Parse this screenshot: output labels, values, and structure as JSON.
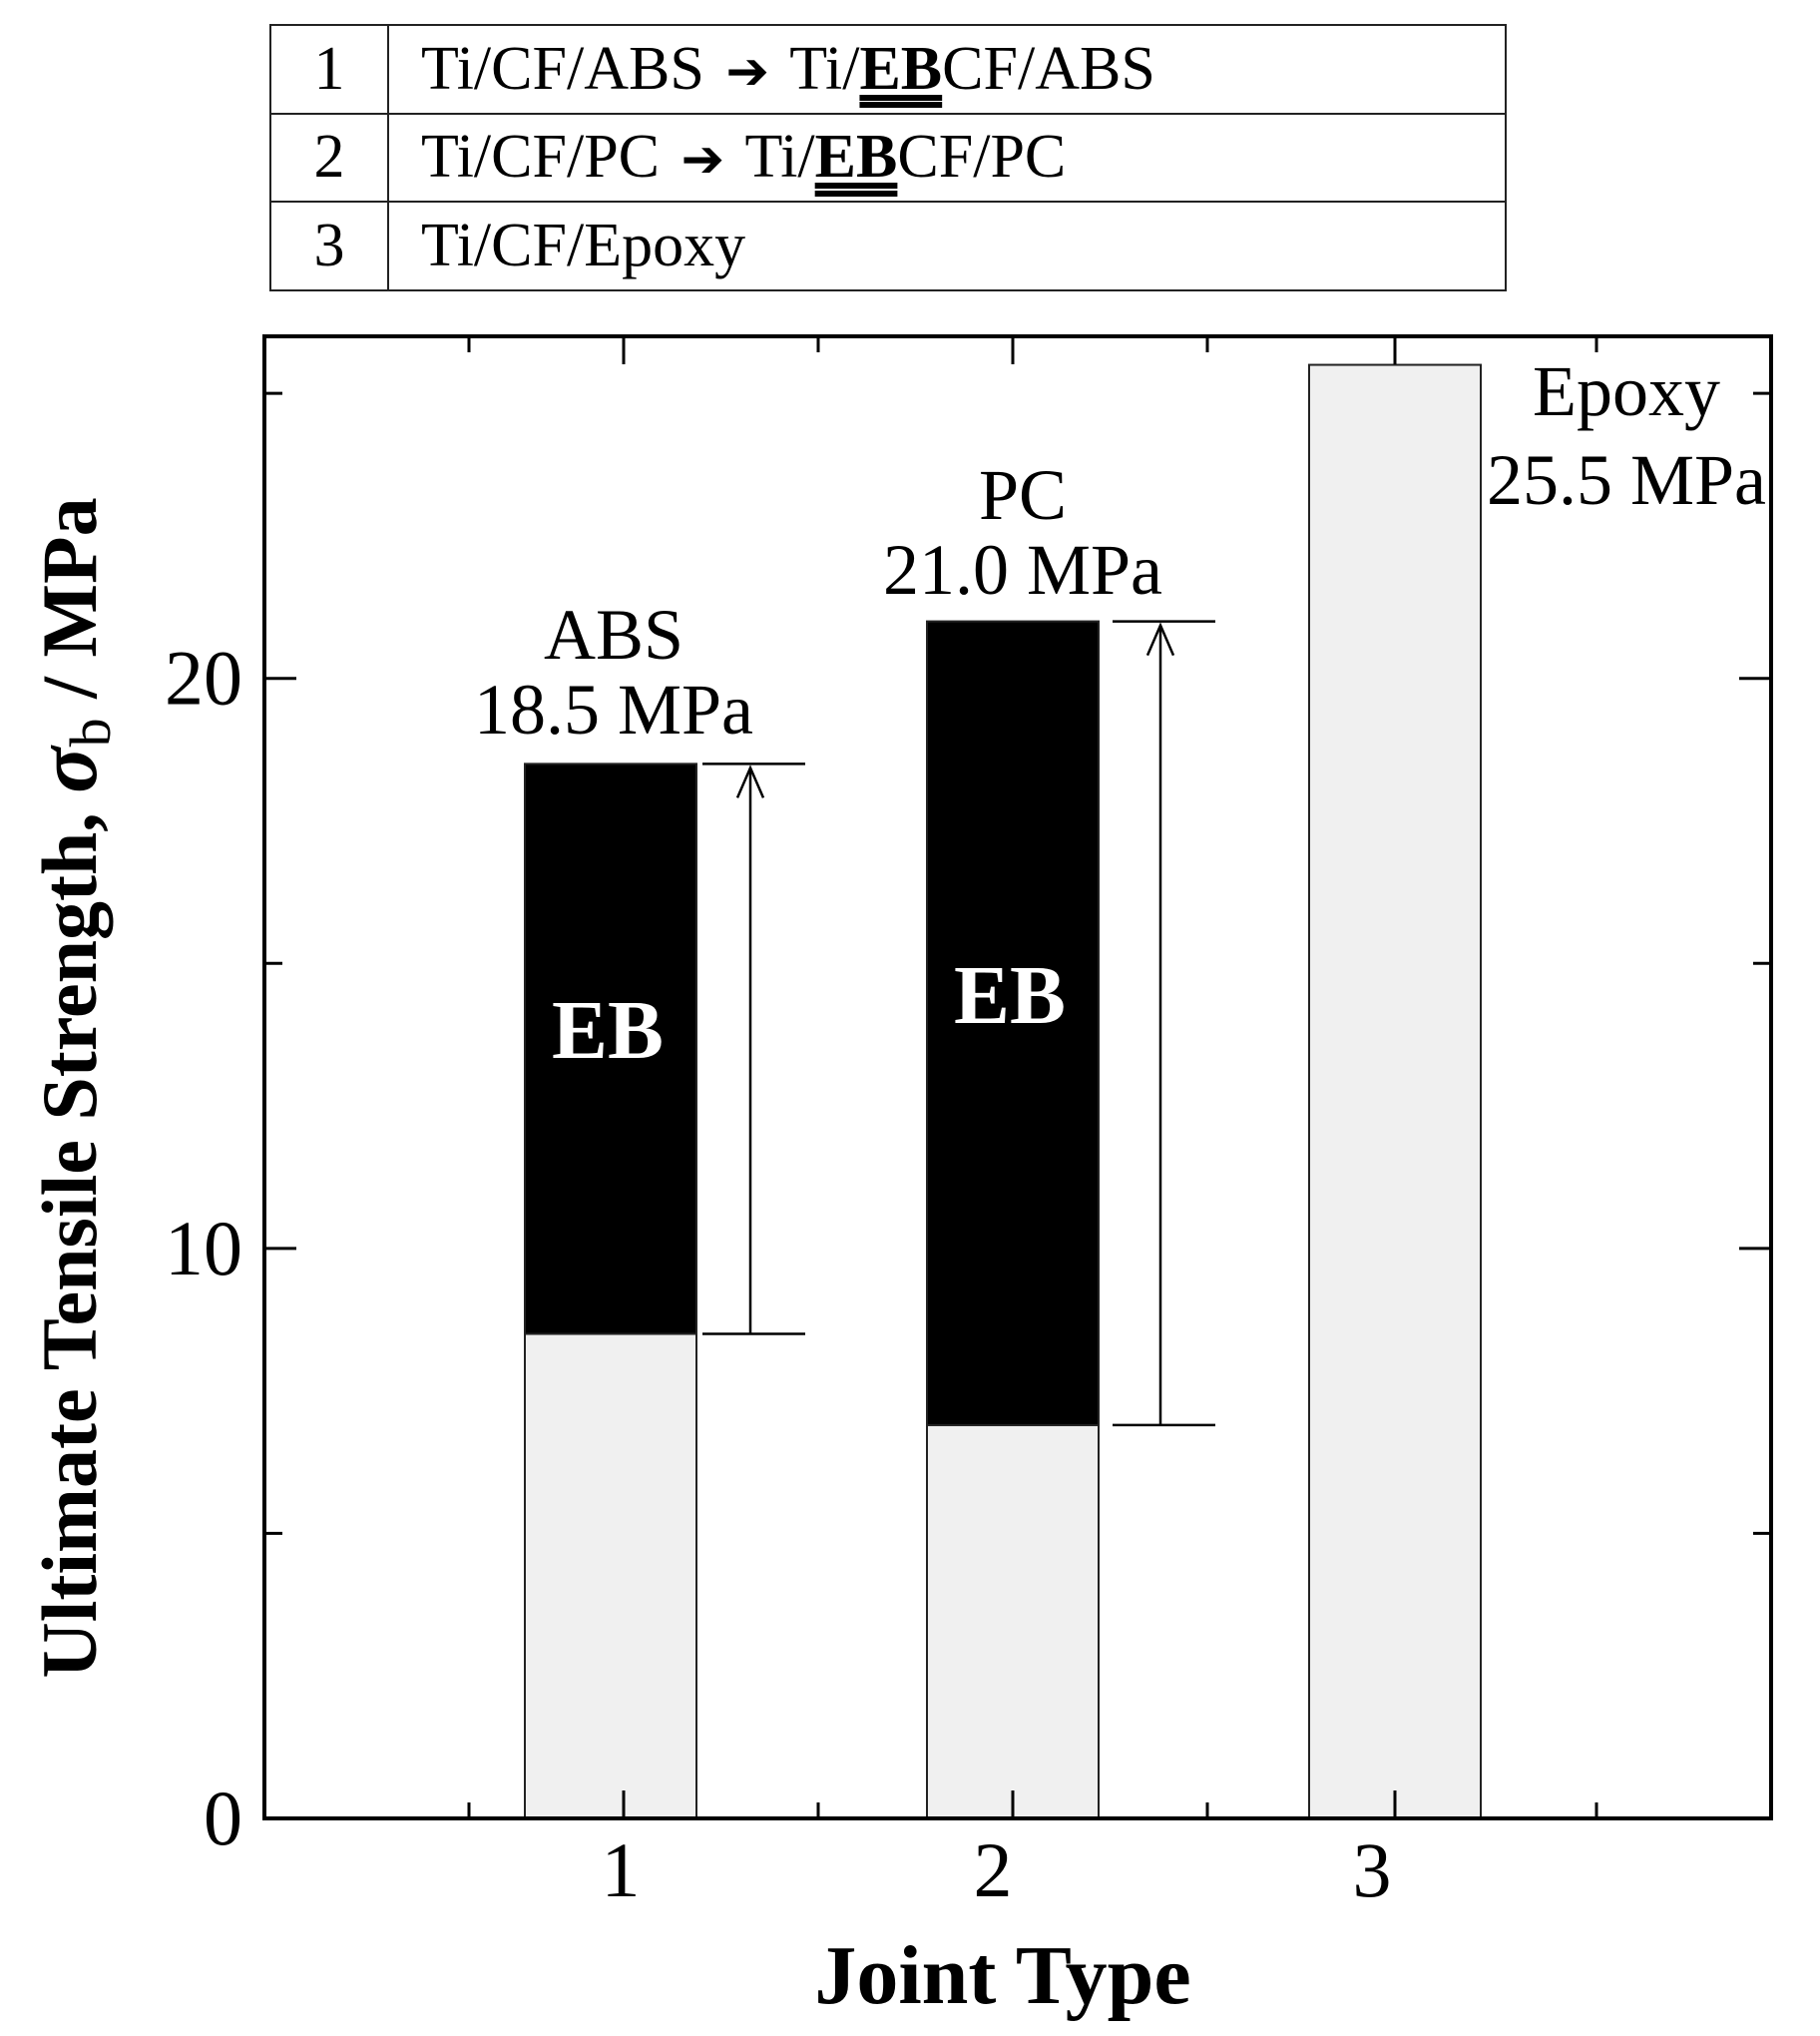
{
  "legend_table": {
    "rows": [
      {
        "num": "1",
        "from": "Ti/CF/ABS",
        "arrow": "➔",
        "to_prefix": "Ti/",
        "to_eb": "EB",
        "to_suffix": "CF/ABS"
      },
      {
        "num": "2",
        "from": "Ti/CF/PC",
        "arrow": "➔",
        "to_prefix": "Ti/",
        "to_eb": "EB",
        "to_suffix": "CF/PC"
      },
      {
        "num": "3",
        "from": "Ti/CF/Epoxy",
        "arrow": "",
        "to_prefix": "",
        "to_eb": "",
        "to_suffix": ""
      }
    ]
  },
  "chart_data": {
    "type": "bar",
    "stacked": true,
    "xlabel": "Joint Type",
    "ylabel_main": "Ultimate Tensile Strength, ",
    "ylabel_symbol": "σ",
    "ylabel_subscript": "b",
    "ylabel_unit": " / MPa",
    "categories": [
      "1",
      "2",
      "3"
    ],
    "ylim": [
      0,
      26
    ],
    "yticks": [
      "0",
      "10",
      "20"
    ],
    "ytick_values": [
      0,
      10,
      20
    ],
    "minor_ytick_values": [
      5,
      15,
      25
    ],
    "series": [
      {
        "name": "",
        "color": "#f0f0f0",
        "values": [
          8.5,
          6.9,
          25.5
        ]
      },
      {
        "name": "EB",
        "color": "#000000",
        "values": [
          10.0,
          14.1,
          0
        ]
      }
    ],
    "bar_labels": [
      {
        "category": "1",
        "material": "ABS",
        "value_text": "18.5 MPa",
        "value": 18.5
      },
      {
        "category": "2",
        "material": "PC",
        "value_text": "21.0 MPa",
        "value": 21.0
      },
      {
        "category": "3",
        "material": "Epoxy",
        "value_text": "25.5 MPa",
        "value": 25.5
      }
    ],
    "eb_label": "EB",
    "increase_arrows": [
      {
        "category": "1",
        "from": 8.5,
        "to": 18.5
      },
      {
        "category": "2",
        "from": 6.9,
        "to": 21.0
      }
    ],
    "grid": false,
    "legend": "top"
  }
}
